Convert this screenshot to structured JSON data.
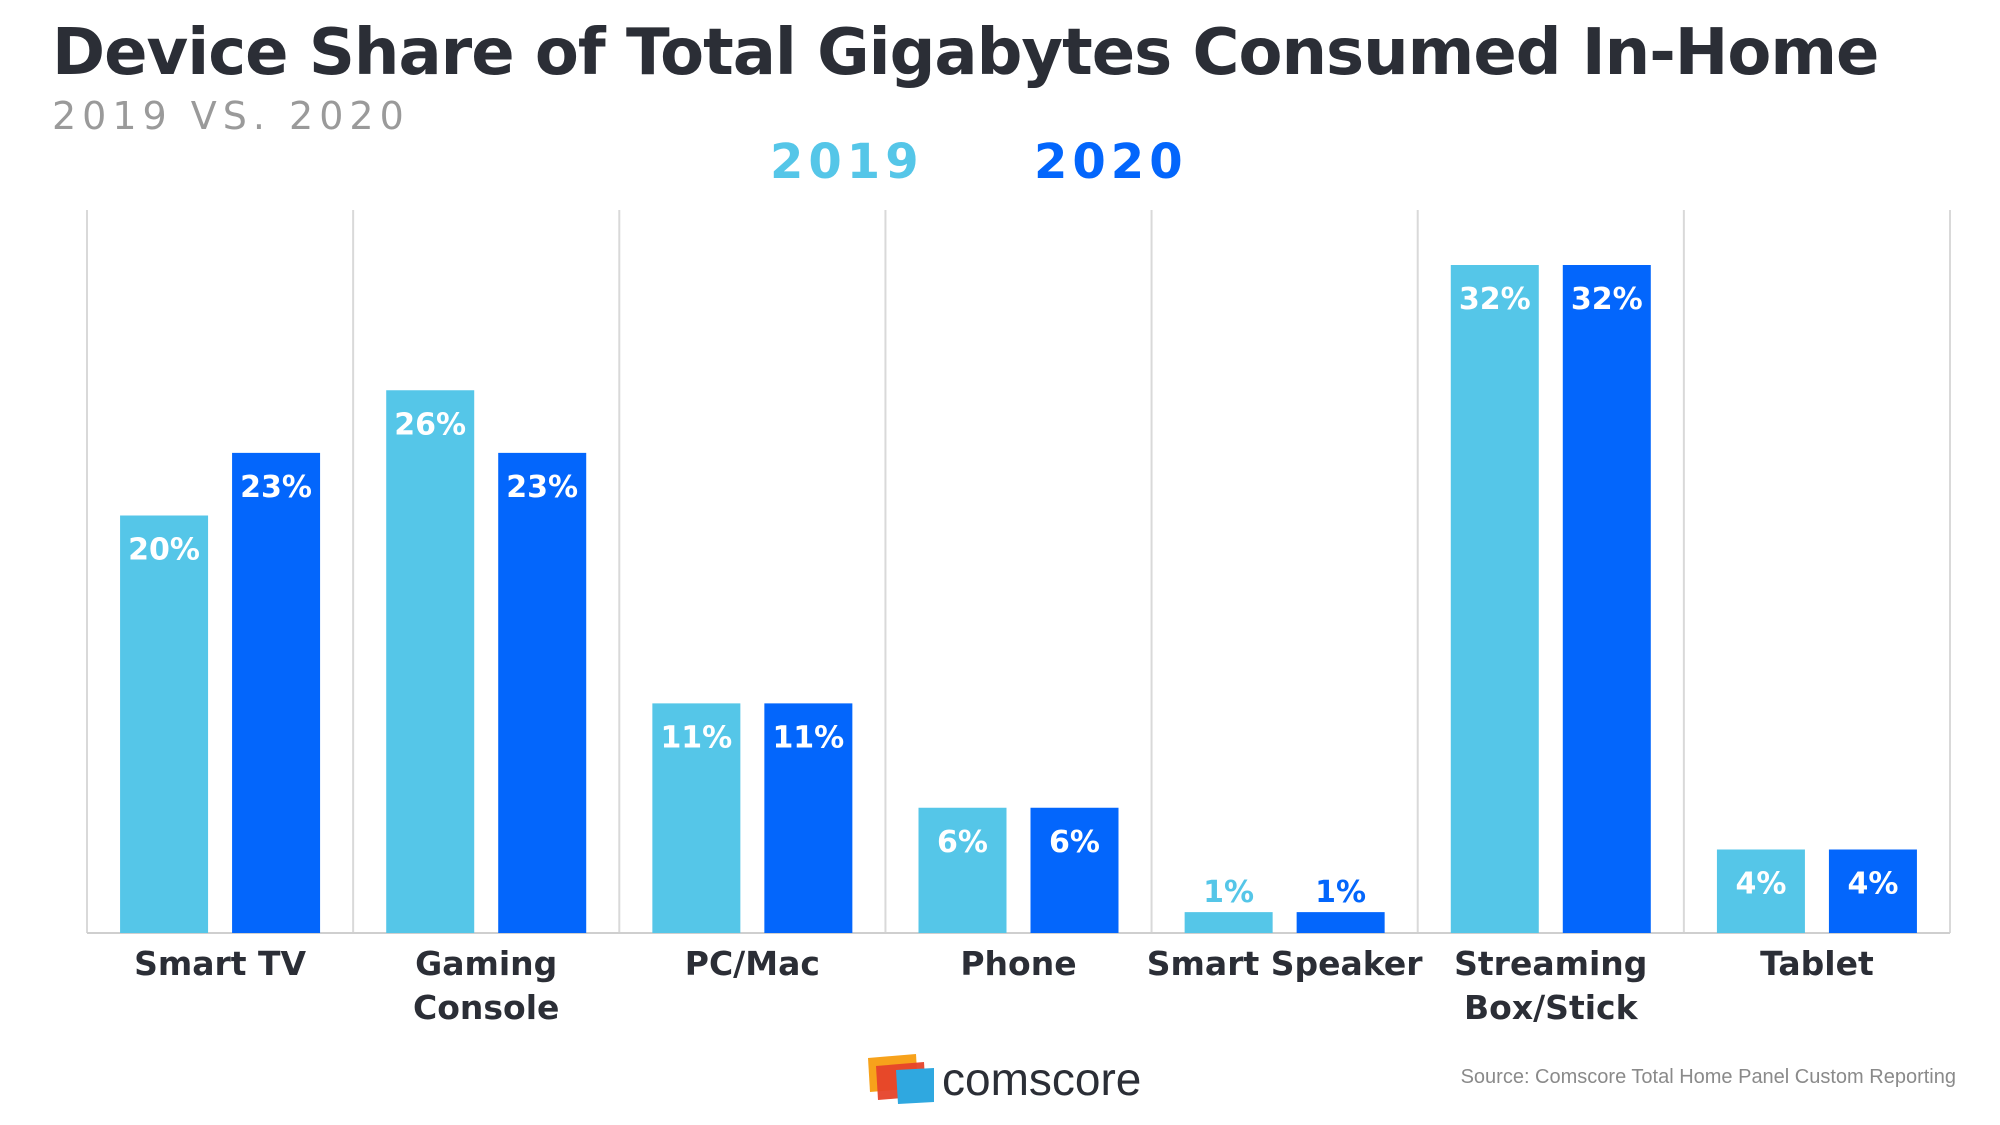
{
  "title": "Device Share of Total Gigabytes Consumed In-Home",
  "subtitle": "2019 VS. 2020",
  "colors": {
    "s2019": "#55c6e8",
    "s2020": "#0366fc",
    "label_2019_small": "#55c6e8",
    "title": "#2b2e36"
  },
  "chart_data": {
    "type": "bar",
    "categories": [
      [
        "Smart TV"
      ],
      [
        "Gaming",
        "Console"
      ],
      [
        "PC/Mac"
      ],
      [
        "Phone"
      ],
      [
        "Smart Speaker"
      ],
      [
        "Streaming",
        "Box/Stick"
      ],
      [
        "Tablet"
      ]
    ],
    "series": [
      {
        "name": "2019",
        "values": [
          20,
          26,
          11,
          6,
          1,
          32,
          4
        ],
        "labels": [
          "20%",
          "26%",
          "11%",
          "6%",
          "1%",
          "32%",
          "4%"
        ]
      },
      {
        "name": "2020",
        "values": [
          23,
          23,
          11,
          6,
          1,
          32,
          4
        ],
        "labels": [
          "23%",
          "23%",
          "11%",
          "6%",
          "1%",
          "32%",
          "4%"
        ]
      }
    ],
    "ylim": [
      0,
      34
    ],
    "grid": "vertical separators",
    "legend": "top-center"
  },
  "footer": {
    "brand": "comscore",
    "source": "Source: Comscore Total Home Panel Custom Reporting"
  }
}
